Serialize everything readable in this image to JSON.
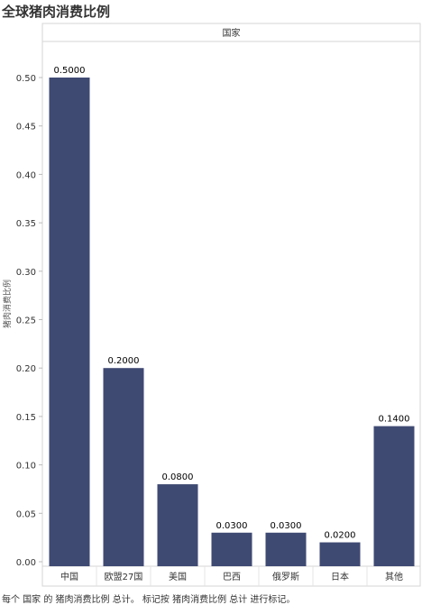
{
  "page": {
    "title": "全球猪肉消费比例",
    "footer": "每个 国家 的 猪肉消费比例 总计。 标记按 猪肉消费比例 总计 进行标记。"
  },
  "chart_data": {
    "type": "bar",
    "column_header": "国家",
    "ylabel": "猪肉消费比例",
    "categories": [
      "中国",
      "欧盟27国",
      "美国",
      "巴西",
      "俄罗斯",
      "日本",
      "其他"
    ],
    "values": [
      0.5,
      0.2,
      0.08,
      0.03,
      0.03,
      0.02,
      0.14
    ],
    "value_labels": [
      "0.5000",
      "0.2000",
      "0.0800",
      "0.0300",
      "0.0300",
      "0.0200",
      "0.1400"
    ],
    "ylim": [
      0,
      0.5
    ],
    "yticks": [
      0.0,
      0.05,
      0.1,
      0.15,
      0.2,
      0.25,
      0.3,
      0.35,
      0.4,
      0.45,
      0.5
    ],
    "ytick_labels": [
      "0.00",
      "0.05",
      "0.10",
      "0.15",
      "0.20",
      "0.25",
      "0.30",
      "0.35",
      "0.40",
      "0.45",
      "0.50"
    ],
    "bar_color": "#3f4a73",
    "grid": false
  }
}
